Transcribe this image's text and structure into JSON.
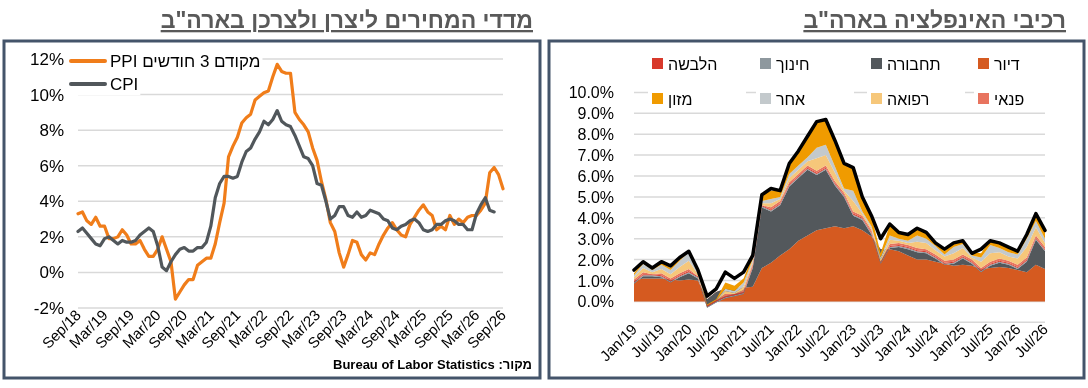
{
  "chart_data": [
    {
      "type": "line",
      "title": "מדדי המחירים ליצרן ולצרכן בארה\"ב",
      "x": [
        "2018-09",
        "2018-10",
        "2018-11",
        "2018-12",
        "2019-01",
        "2019-02",
        "2019-03",
        "2019-04",
        "2019-05",
        "2019-06",
        "2019-07",
        "2019-08",
        "2019-09",
        "2019-10",
        "2019-11",
        "2019-12",
        "2020-01",
        "2020-02",
        "2020-03",
        "2020-04",
        "2020-05",
        "2020-06",
        "2020-07",
        "2020-08",
        "2020-09",
        "2020-10",
        "2020-11",
        "2020-12",
        "2021-01",
        "2021-02",
        "2021-03",
        "2021-04",
        "2021-05",
        "2021-06",
        "2021-07",
        "2021-08",
        "2021-09",
        "2021-10",
        "2021-11",
        "2021-12",
        "2022-01",
        "2022-02",
        "2022-03",
        "2022-04",
        "2022-05",
        "2022-06",
        "2022-07",
        "2022-08",
        "2022-09",
        "2022-10",
        "2022-11",
        "2022-12",
        "2023-01",
        "2023-02",
        "2023-03",
        "2023-04",
        "2023-05",
        "2023-06",
        "2023-07",
        "2023-08",
        "2023-09",
        "2023-10",
        "2023-11",
        "2023-12",
        "2024-01",
        "2024-02",
        "2024-03",
        "2024-04",
        "2024-05",
        "2024-06",
        "2024-07",
        "2024-08",
        "2024-09",
        "2024-10",
        "2024-11",
        "2024-12",
        "2025-01",
        "2025-02",
        "2025-03",
        "2025-04",
        "2025-05",
        "2025-06",
        "2025-07",
        "2025-08",
        "2025-09",
        "2025-10",
        "2025-11",
        "2025-12",
        "2026-01",
        "2026-02",
        "2026-03",
        "2026-04",
        "2026-05",
        "2026-06",
        "2026-07",
        "2026-08",
        "2026-09"
      ],
      "series": [
        {
          "name": "PPI מקודם 3 חודשים",
          "color": "#f07d1a",
          "values": [
            3.3,
            3.4,
            2.9,
            2.7,
            3.1,
            2.6,
            2.6,
            1.9,
            1.9,
            2.0,
            2.4,
            2.1,
            1.6,
            1.6,
            1.8,
            1.3,
            0.9,
            0.9,
            1.3,
            2.0,
            1.3,
            0.6,
            -1.5,
            -1.1,
            -0.7,
            -0.4,
            -0.4,
            0.4,
            0.6,
            0.8,
            0.8,
            1.6,
            2.8,
            3.9,
            6.5,
            7.1,
            7.6,
            8.4,
            8.7,
            8.9,
            9.7,
            9.9,
            10.1,
            10.2,
            11.0,
            11.7,
            11.3,
            11.2,
            11.2,
            9.0,
            8.6,
            8.3,
            7.9,
            7.0,
            6.3,
            5.1,
            4.1,
            2.8,
            2.3,
            1.1,
            0.3,
            1.0,
            1.8,
            1.7,
            1.0,
            0.7,
            1.1,
            1.0,
            1.6,
            2.1,
            2.5,
            2.8,
            2.4,
            2.1,
            2.0,
            2.7,
            3.1,
            3.5,
            3.8,
            3.4,
            3.2,
            2.4,
            2.6,
            2.4,
            3.2,
            2.7,
            3.0,
            2.8,
            3.1,
            3.2,
            3.2,
            3.5,
            3.9,
            5.6,
            5.9,
            5.5,
            4.7
          ]
        },
        {
          "name": "CPI",
          "color": "#51575b",
          "values": [
            2.3,
            2.5,
            2.2,
            1.9,
            1.6,
            1.5,
            1.9,
            2.0,
            1.8,
            1.6,
            1.8,
            1.7,
            1.7,
            1.8,
            2.1,
            2.3,
            2.5,
            2.3,
            1.5,
            0.3,
            0.1,
            0.6,
            1.0,
            1.3,
            1.4,
            1.2,
            1.2,
            1.4,
            1.4,
            1.7,
            2.6,
            4.2,
            5.0,
            5.4,
            5.4,
            5.3,
            5.4,
            6.2,
            6.8,
            7.0,
            7.5,
            7.9,
            8.5,
            8.3,
            8.6,
            9.1,
            8.5,
            8.3,
            8.2,
            7.7,
            7.1,
            6.5,
            6.4,
            6.0,
            5.0,
            4.9,
            4.0,
            3.0,
            3.2,
            3.7,
            3.7,
            3.2,
            3.1,
            3.4,
            3.1,
            3.2,
            3.5,
            3.4,
            3.3,
            3.0,
            2.9,
            2.5,
            2.4,
            2.6,
            2.7,
            2.9,
            3.0,
            2.8,
            2.4,
            2.3,
            2.4,
            2.7,
            2.7,
            2.9,
            3.0,
            2.9,
            2.7,
            2.7,
            2.4,
            2.4,
            3.3,
            3.8,
            4.2,
            3.5,
            3.4,
            null,
            null
          ]
        }
      ],
      "xlim": [
        "2018-09",
        "2026-09"
      ],
      "xticks": [
        {
          "value": "2018-09",
          "label": "Sep/18"
        },
        {
          "value": "2019-03",
          "label": "Mar/19"
        },
        {
          "value": "2019-09",
          "label": "Sep/19"
        },
        {
          "value": "2020-03",
          "label": "Mar/20"
        },
        {
          "value": "2020-09",
          "label": "Sep/20"
        },
        {
          "value": "2021-03",
          "label": "Mar/21"
        },
        {
          "value": "2021-09",
          "label": "Sep/21"
        },
        {
          "value": "2022-03",
          "label": "Mar/22"
        },
        {
          "value": "2022-09",
          "label": "Sep/22"
        },
        {
          "value": "2023-03",
          "label": "Mar/23"
        },
        {
          "value": "2023-09",
          "label": "Sep/23"
        },
        {
          "value": "2024-03",
          "label": "Mar/24"
        },
        {
          "value": "2024-09",
          "label": "Sep/24"
        },
        {
          "value": "2025-03",
          "label": "Mar/25"
        },
        {
          "value": "2025-09",
          "label": "Sep/25"
        },
        {
          "value": "2026-03",
          "label": "Mar/26"
        },
        {
          "value": "2026-09",
          "label": "Sep/26"
        }
      ],
      "ylim": [
        -2,
        12
      ],
      "yticks": [
        {
          "value": -2,
          "label": "-2%"
        },
        {
          "value": 0,
          "label": "0%"
        },
        {
          "value": 2,
          "label": "2%"
        },
        {
          "value": 4,
          "label": "4%"
        },
        {
          "value": 6,
          "label": "6%"
        },
        {
          "value": 8,
          "label": "8%"
        },
        {
          "value": 10,
          "label": "10%"
        },
        {
          "value": 12,
          "label": "12%"
        }
      ],
      "grid": "y",
      "legend": "top left",
      "marker": "none",
      "line_style": "solid",
      "annotations": [
        "מקור: Bureau of Labor Statistics"
      ]
    },
    {
      "type": "area",
      "title": "רכיבי האינפלציה בארה\"ב",
      "stacked": true,
      "x": [
        "2019-01",
        "2019-03",
        "2019-05",
        "2019-07",
        "2019-09",
        "2019-11",
        "2020-01",
        "2020-03",
        "2020-05",
        "2020-07",
        "2020-09",
        "2020-11",
        "2021-01",
        "2021-03",
        "2021-05",
        "2021-07",
        "2021-09",
        "2021-11",
        "2022-01",
        "2022-03",
        "2022-05",
        "2022-07",
        "2022-09",
        "2022-11",
        "2023-01",
        "2023-03",
        "2023-05",
        "2023-07",
        "2023-09",
        "2023-11",
        "2024-01",
        "2024-03",
        "2024-05",
        "2024-07",
        "2024-09",
        "2024-11",
        "2025-01",
        "2025-03",
        "2025-05",
        "2025-07",
        "2025-09",
        "2025-11",
        "2026-01",
        "2026-03",
        "2026-05",
        "2026-07"
      ],
      "series": [
        {
          "name": "דיור",
          "color": "#d55a20",
          "values": [
            1.0,
            1.1,
            1.1,
            1.1,
            1.05,
            1.0,
            1.05,
            1.0,
            0.1,
            0.45,
            0.6,
            0.65,
            0.65,
            0.7,
            1.6,
            1.85,
            2.2,
            2.5,
            2.9,
            3.15,
            3.4,
            3.5,
            3.6,
            3.5,
            3.6,
            3.4,
            3.1,
            2.5,
            2.5,
            2.4,
            2.2,
            2.0,
            2.0,
            1.9,
            1.8,
            1.7,
            1.75,
            1.7,
            1.55,
            1.6,
            1.65,
            1.6,
            1.5,
            1.4,
            1.75,
            1.55
          ]
        },
        {
          "name": "תחבורה",
          "color": "#53585c",
          "values": [
            -0.15,
            0.1,
            0.1,
            0.05,
            -0.15,
            0.15,
            0.3,
            0.1,
            -0.4,
            -0.5,
            -0.45,
            -0.4,
            -0.3,
            0.9,
            2.9,
            2.45,
            2.4,
            3.0,
            3.0,
            3.15,
            2.65,
            2.8,
            1.95,
            1.5,
            0.5,
            0.5,
            0.1,
            -0.7,
            0.05,
            0.2,
            0.3,
            0.35,
            0.3,
            0.15,
            -0.05,
            0.1,
            0.3,
            0.1,
            -0.15,
            0.1,
            0.2,
            0.15,
            0.05,
            0.5,
            1.2,
            0.85
          ]
        },
        {
          "name": "חינוך",
          "color": "#8e989e",
          "values": [
            0.05,
            0.05,
            0.05,
            0.05,
            0.05,
            0.05,
            0.05,
            0.05,
            0.05,
            0.05,
            0.05,
            0.05,
            0.05,
            0.05,
            0.05,
            0.05,
            0.05,
            0.05,
            0.05,
            0.05,
            0.05,
            0.05,
            0.05,
            0.05,
            0.05,
            0.05,
            0.05,
            0.05,
            0.05,
            0.05,
            0.05,
            0.05,
            0.05,
            0.05,
            0.05,
            0.05,
            0.05,
            0.05,
            0.05,
            0.05,
            0.05,
            0.05,
            0.05,
            0.05,
            0.05,
            0.05
          ]
        },
        {
          "name": "הלבשה",
          "color": "#d8392b",
          "values": [
            0.05,
            0.05,
            0.05,
            0.05,
            0.05,
            0.05,
            0.05,
            0.05,
            0.05,
            0.05,
            0.05,
            0.05,
            0.05,
            0.05,
            0.05,
            0.05,
            0.05,
            0.05,
            0.05,
            0.05,
            0.05,
            0.05,
            0.05,
            0.05,
            0.05,
            0.05,
            0.05,
            0.05,
            0.05,
            0.05,
            0.05,
            0.05,
            0.05,
            0.05,
            0.05,
            0.05,
            0.05,
            0.05,
            0.05,
            0.05,
            0.05,
            0.05,
            0.05,
            0.05,
            0.05,
            0.05
          ]
        },
        {
          "name": "פנאי",
          "color": "#e8745f",
          "values": [
            0.1,
            0.1,
            0,
            0.1,
            0.1,
            0.1,
            0.1,
            0,
            0,
            0,
            0.1,
            0,
            0.1,
            0.1,
            0,
            0.1,
            0.1,
            0.1,
            0.1,
            0.1,
            0.1,
            0.1,
            0.1,
            0.1,
            0.1,
            0.1,
            0.1,
            0,
            0.1,
            0.1,
            0.1,
            0.1,
            0.1,
            0.1,
            0.1,
            0.1,
            0.1,
            0.1,
            0.1,
            0.1,
            0.1,
            0.1,
            0.1,
            0.1,
            0.1,
            0.1
          ]
        },
        {
          "name": "רפואה",
          "color": "#f6c77a",
          "values": [
            0.1,
            0.2,
            0.1,
            0.2,
            0.2,
            0.3,
            0.4,
            0.1,
            0,
            0,
            0.15,
            0.05,
            0.15,
            0.1,
            0.1,
            0.2,
            0.1,
            0.2,
            0.2,
            0.2,
            0.6,
            0.5,
            0.4,
            0.1,
            0.5,
            0.1,
            0.1,
            0.1,
            0.2,
            0.1,
            0.1,
            0.3,
            0.3,
            0.2,
            0.2,
            0.3,
            0.3,
            0.1,
            0.3,
            0.4,
            0.3,
            0.2,
            0.3,
            0.5,
            0.4,
            0.2
          ]
        },
        {
          "name": "אחר",
          "color": "#c3c9cc",
          "values": [
            0.1,
            0.2,
            0.1,
            0.2,
            0.2,
            0.3,
            0.4,
            0.1,
            0,
            0,
            0.1,
            0.1,
            0.2,
            0.1,
            0.1,
            0.2,
            0.1,
            0.2,
            0.2,
            0.2,
            0.5,
            0.5,
            0.3,
            0.1,
            0.5,
            0.1,
            0.1,
            0.1,
            0.2,
            0.1,
            0.1,
            0.3,
            0.2,
            0.2,
            0.1,
            0.3,
            0.2,
            0.1,
            0.2,
            0.4,
            0.2,
            0.2,
            0.2,
            0.4,
            0.3,
            0.2
          ]
        },
        {
          "name": "מזון",
          "color": "#f09b00",
          "values": [
            0.1,
            0.1,
            0.1,
            0.1,
            0.1,
            0.1,
            0.1,
            0.1,
            0.05,
            0.05,
            0.3,
            0.25,
            0.2,
            0.2,
            0.3,
            0.4,
            0.3,
            0.5,
            0.7,
            1.0,
            1.2,
            1.2,
            1.3,
            1.2,
            1.1,
            0.7,
            0.5,
            0.2,
            0.5,
            0.3,
            0.3,
            0.3,
            0.25,
            0.2,
            0.15,
            0.2,
            0.2,
            0.15,
            0.2,
            0.25,
            0.2,
            0.2,
            0.15,
            0.2,
            0.35,
            0.35
          ]
        },
        {
          "type": "line",
          "color": "#000000",
          "values": [
            1.5,
            1.9,
            1.6,
            1.9,
            1.7,
            2.1,
            2.4,
            1.5,
            0.25,
            0.6,
            1.4,
            1.1,
            1.4,
            2.2,
            5.1,
            5.4,
            5.3,
            6.6,
            7.2,
            7.9,
            8.6,
            8.7,
            7.7,
            6.6,
            6.4,
            5.0,
            4.1,
            3.0,
            3.7,
            3.3,
            3.2,
            3.5,
            3.3,
            2.8,
            2.5,
            2.8,
            2.9,
            2.3,
            2.5,
            2.9,
            2.8,
            2.6,
            2.4,
            3.2,
            4.2,
            3.4
          ]
        }
      ],
      "xlim": [
        "2019-01",
        "2026-07"
      ],
      "xticks": [
        {
          "value": "2019-01",
          "label": "Jan/19"
        },
        {
          "value": "2019-07",
          "label": "Jul/19"
        },
        {
          "value": "2020-01",
          "label": "Jan/20"
        },
        {
          "value": "2020-07",
          "label": "Jul/20"
        },
        {
          "value": "2021-01",
          "label": "Jan/21"
        },
        {
          "value": "2021-07",
          "label": "Jul/21"
        },
        {
          "value": "2022-01",
          "label": "Jan/22"
        },
        {
          "value": "2022-07",
          "label": "Jul/22"
        },
        {
          "value": "2023-01",
          "label": "Jan/23"
        },
        {
          "value": "2023-07",
          "label": "Jul/23"
        },
        {
          "value": "2024-01",
          "label": "Jan/24"
        },
        {
          "value": "2024-07",
          "label": "Jul/24"
        },
        {
          "value": "2025-01",
          "label": "Jan/25"
        },
        {
          "value": "2025-07",
          "label": "Jul/25"
        },
        {
          "value": "2026-01",
          "label": "Jan/26"
        },
        {
          "value": "2026-07",
          "label": "Jul/26"
        }
      ],
      "ylim": [
        -1,
        10
      ],
      "yticks": [
        {
          "value": -1,
          "label": null
        },
        {
          "value": 0,
          "label": "0.0%"
        },
        {
          "value": 1,
          "label": "1.0%"
        },
        {
          "value": 2,
          "label": "2.0%"
        },
        {
          "value": 3,
          "label": "3.0%"
        },
        {
          "value": 4,
          "label": "4.0%"
        },
        {
          "value": 5,
          "label": "5.0%"
        },
        {
          "value": 6,
          "label": "6.0%"
        },
        {
          "value": 7,
          "label": "7.0%"
        },
        {
          "value": 8,
          "label": "8.0%"
        },
        {
          "value": 9,
          "label": "9.0%"
        },
        {
          "value": 10,
          "label": "10.0%"
        }
      ],
      "grid": "y",
      "legend": "top"
    }
  ]
}
